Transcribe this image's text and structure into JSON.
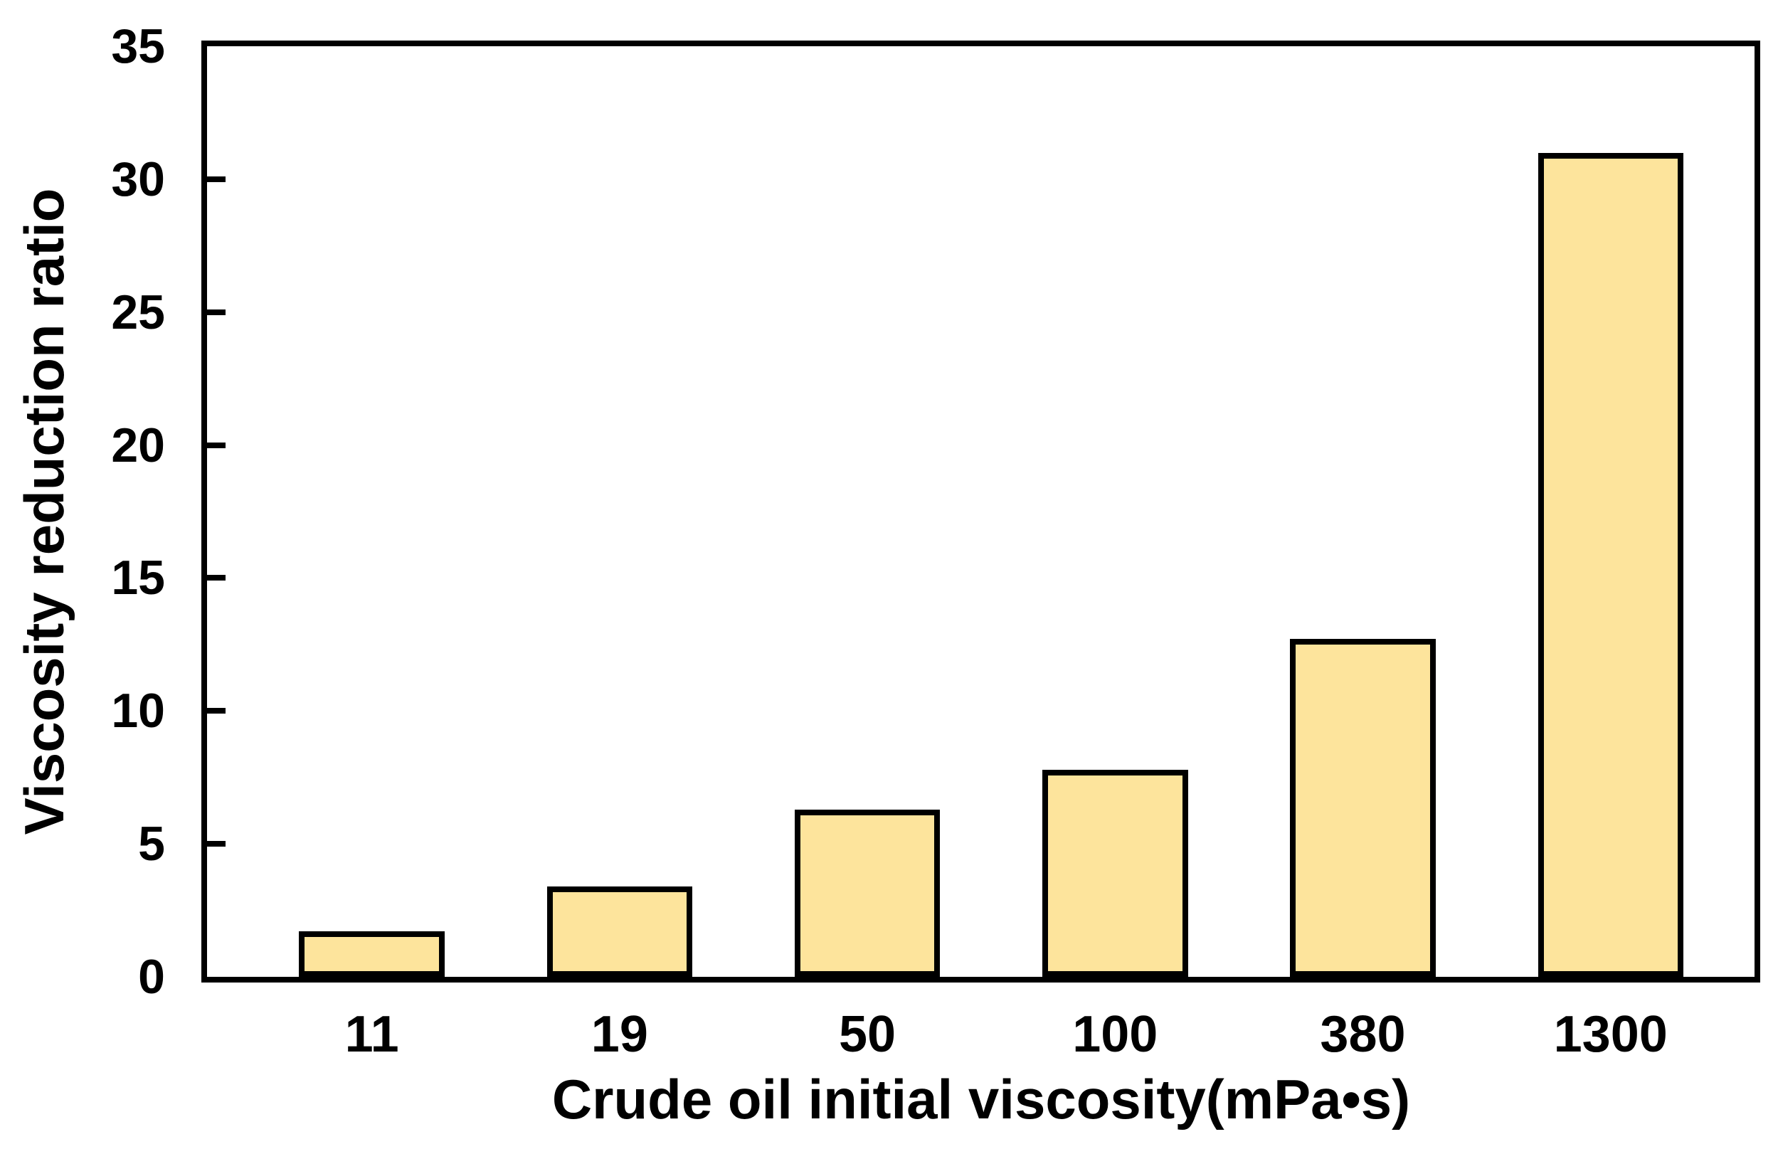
{
  "chart_data": {
    "type": "bar",
    "title": "",
    "categories": [
      "11",
      "19",
      "50",
      "100",
      "380",
      "1300"
    ],
    "values": [
      1.7,
      3.4,
      6.3,
      7.8,
      12.7,
      31.0
    ],
    "xlabel": "Crude oil initial viscosity(mPa•s)",
    "ylabel": "Viscosity reduction ratio",
    "ylim": [
      0,
      35
    ],
    "yticks": [
      0,
      5,
      10,
      15,
      20,
      25,
      30,
      35
    ],
    "grid": false,
    "legend": null,
    "colors": {
      "bar_fill": "#FDE49C",
      "bar_edge": "#000000",
      "axis": "#000000",
      "background": "#FFFFFF",
      "text": "#000000"
    }
  }
}
